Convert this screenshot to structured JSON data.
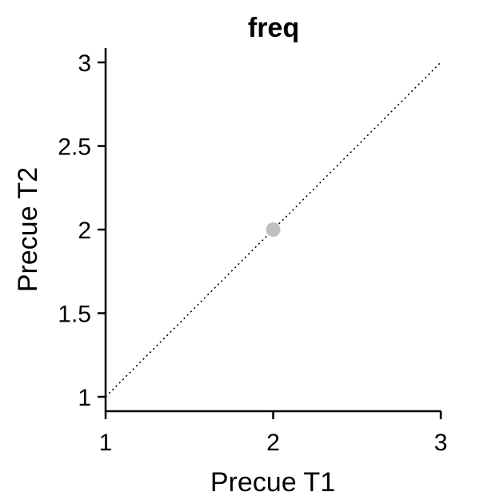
{
  "chart_data": {
    "type": "scatter",
    "title": "freq",
    "xlabel": "Precue T1",
    "ylabel": "Precue T2",
    "xlim": [
      1,
      3
    ],
    "ylim": [
      1,
      3
    ],
    "xticks": [
      1,
      2,
      3
    ],
    "xtick_labels": [
      "1",
      "2",
      "3"
    ],
    "yticks": [
      1,
      1.5,
      2,
      2.5,
      3
    ],
    "ytick_labels": [
      "1",
      "1.5",
      "2",
      "2.5",
      "3"
    ],
    "grid": false,
    "reference_line": "identity (dotted)",
    "series": [
      {
        "points": [
          {
            "x": 2,
            "y": 2
          }
        ],
        "color": "#bfbfbf"
      }
    ]
  }
}
